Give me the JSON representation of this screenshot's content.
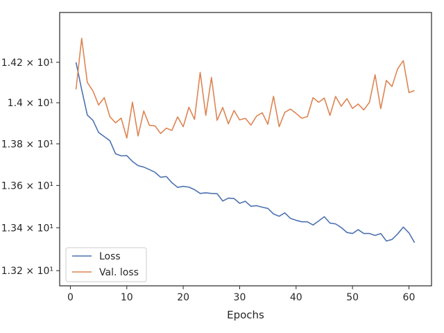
{
  "chart_data": {
    "type": "line",
    "xlabel": "Epochs",
    "ylabel": "",
    "xlim": [
      -1.9,
      64
    ],
    "ylim": [
      13.13,
      14.45
    ],
    "y_scale": "log",
    "grid": false,
    "legend_placement": "lower-left",
    "x_ticks": [
      {
        "value": 0,
        "label": "0"
      },
      {
        "value": 10,
        "label": "10"
      },
      {
        "value": 20,
        "label": "20"
      },
      {
        "value": 30,
        "label": "30"
      },
      {
        "value": 40,
        "label": "40"
      },
      {
        "value": 50,
        "label": "50"
      },
      {
        "value": 60,
        "label": "60"
      }
    ],
    "y_ticks": [
      {
        "value": 13.2,
        "label": "1.32 × 10¹"
      },
      {
        "value": 13.4,
        "label": "1.34 × 10¹"
      },
      {
        "value": 13.6,
        "label": "1.36 × 10¹"
      },
      {
        "value": 13.8,
        "label": "1.38 × 10¹"
      },
      {
        "value": 14.0,
        "label": "1.4 × 10¹"
      },
      {
        "value": 14.2,
        "label": "1.42 × 10¹"
      }
    ],
    "x": [
      1,
      2,
      3,
      4,
      5,
      6,
      7,
      8,
      9,
      10,
      11,
      12,
      13,
      14,
      15,
      16,
      17,
      18,
      19,
      20,
      21,
      22,
      23,
      24,
      25,
      26,
      27,
      28,
      29,
      30,
      31,
      32,
      33,
      34,
      35,
      36,
      37,
      38,
      39,
      40,
      41,
      42,
      43,
      44,
      45,
      46,
      47,
      48,
      49,
      50,
      51,
      52,
      53,
      54,
      55,
      56,
      57,
      58,
      59,
      60,
      61
    ],
    "series": [
      {
        "name": "Loss",
        "color": "#4c72b0",
        "values": [
          14.2,
          14.065,
          13.94,
          13.914,
          13.855,
          13.835,
          13.815,
          13.752,
          13.742,
          13.743,
          13.715,
          13.695,
          13.688,
          13.676,
          13.663,
          13.639,
          13.643,
          13.613,
          13.591,
          13.596,
          13.592,
          13.58,
          13.562,
          13.565,
          13.562,
          13.561,
          13.526,
          13.54,
          13.538,
          13.515,
          13.525,
          13.501,
          13.504,
          13.497,
          13.491,
          13.465,
          13.454,
          13.47,
          13.444,
          13.435,
          13.428,
          13.428,
          13.413,
          13.432,
          13.452,
          13.422,
          13.418,
          13.401,
          13.378,
          13.373,
          13.391,
          13.373,
          13.373,
          13.364,
          13.373,
          13.338,
          13.345,
          13.371,
          13.403,
          13.376,
          13.33
        ]
      },
      {
        "name": "Val. loss",
        "color": "#dd8452",
        "values": [
          14.066,
          14.32,
          14.1,
          14.058,
          13.989,
          14.025,
          13.932,
          13.902,
          13.925,
          13.828,
          14.003,
          13.838,
          13.96,
          13.89,
          13.887,
          13.85,
          13.876,
          13.865,
          13.931,
          13.883,
          13.978,
          13.919,
          14.15,
          13.938,
          14.125,
          13.914,
          13.977,
          13.897,
          13.962,
          13.916,
          13.924,
          13.891,
          13.935,
          13.951,
          13.895,
          14.032,
          13.883,
          13.953,
          13.969,
          13.948,
          13.924,
          13.932,
          14.025,
          14.002,
          14.023,
          13.938,
          14.031,
          13.983,
          14.02,
          13.972,
          13.994,
          13.965,
          14.002,
          14.138,
          13.971,
          14.11,
          14.08,
          14.168,
          14.208,
          14.05,
          14.06
        ]
      }
    ]
  }
}
